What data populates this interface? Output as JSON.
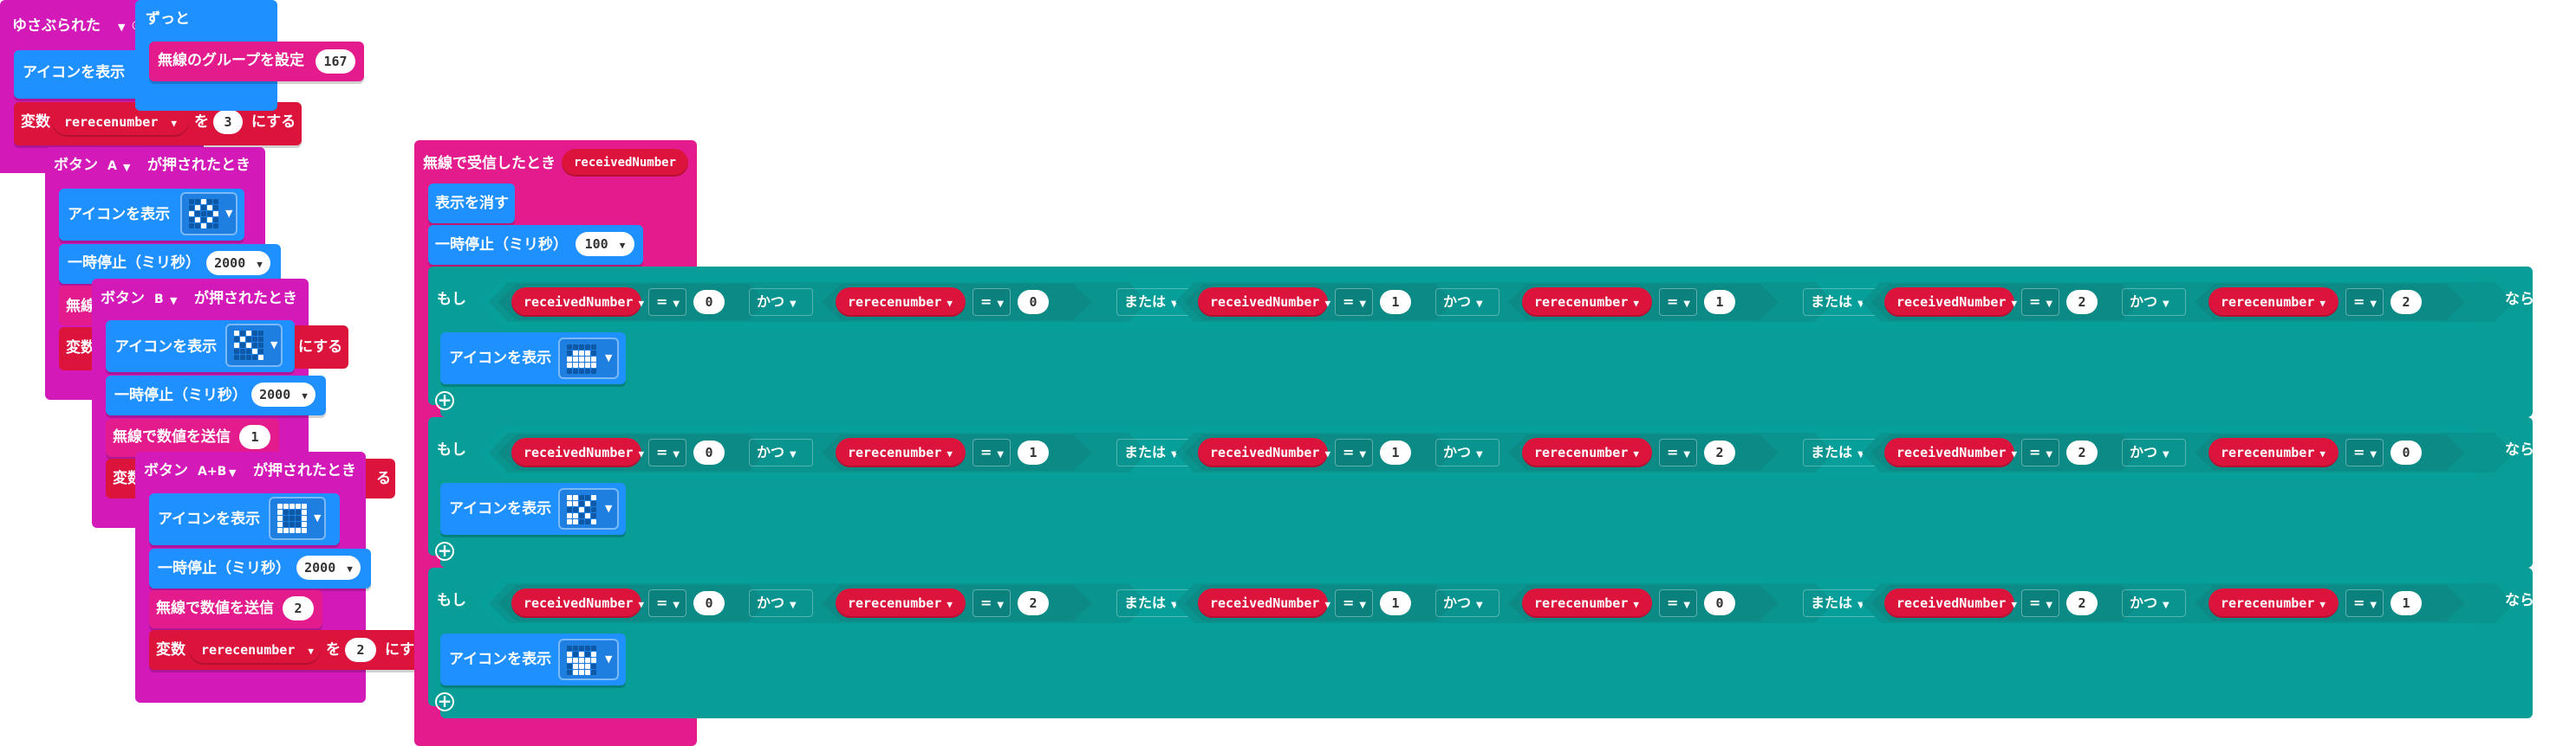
{
  "colors": {
    "input_events": "#d319b8",
    "basic": "#1e90ff",
    "variables": "#dc143c",
    "logic": "#089d97",
    "radio": "#e31b8c"
  },
  "on_shake": {
    "label": "ゆさぶられた",
    "show_icon": "アイコンを表示",
    "set_var": "変数",
    "var_name": "rerecenumber",
    "to": "を",
    "value": "3",
    "set_suffix": "にする"
  },
  "forever": {
    "label": "ずっと",
    "radio_group_label": "無線のグループを設定",
    "radio_group_value": "167"
  },
  "button_a": {
    "prefix": "ボタン",
    "button": "A",
    "suffix": "が押されたとき",
    "show_icon": "アイコンを表示",
    "pause": "一時停止（ミリ秒）",
    "pause_value": "2000",
    "hidden_radio": "無線",
    "hidden_var": "変数"
  },
  "button_b": {
    "prefix": "ボタン",
    "button": "B",
    "suffix": "が押されたとき",
    "show_icon": "アイコンを表示",
    "pause": "一時停止（ミリ秒）",
    "pause_value": "2000",
    "send_number": "無線で数値を送信",
    "send_value": "1",
    "hidden_var": "変数",
    "hidden_suffix1": "にする",
    "hidden_suffix2": "る"
  },
  "button_ab": {
    "prefix": "ボタン",
    "button": "A+B",
    "suffix": "が押されたとき",
    "show_icon": "アイコンを表示",
    "pause": "一時停止（ミリ秒）",
    "pause_value": "2000",
    "send_number": "無線で数値を送信",
    "send_value": "2",
    "set_var": "変数",
    "var_name": "rerecenumber",
    "to": "を",
    "value": "2",
    "set_suffix": "にする"
  },
  "on_received": {
    "label": "無線で受信したとき",
    "param": "receivedNumber",
    "clear": "表示を消す",
    "pause": "一時停止（ミリ秒）",
    "pause_value": "100",
    "if_label": "もし",
    "then_label": "なら",
    "show_icon": "アイコンを表示",
    "and_label": "かつ",
    "or_label": "または",
    "eq": "=",
    "var_rn": "receivedNumber",
    "var_rr": "rerecenumber",
    "conditions": [
      [
        "0",
        "0",
        "1",
        "1",
        "2",
        "2"
      ],
      [
        "0",
        "1",
        "1",
        "2",
        "2",
        "0"
      ],
      [
        "0",
        "2",
        "1",
        "0",
        "2",
        "1"
      ]
    ]
  },
  "icons": {
    "shake": "heart-icon",
    "a_icon": "diamond-icon",
    "b_icon": "check-pattern-icon",
    "ab_icon": "square-icon",
    "r1": "rock-icon",
    "r2": "scissors-icon",
    "r3": "paper-icon"
  }
}
